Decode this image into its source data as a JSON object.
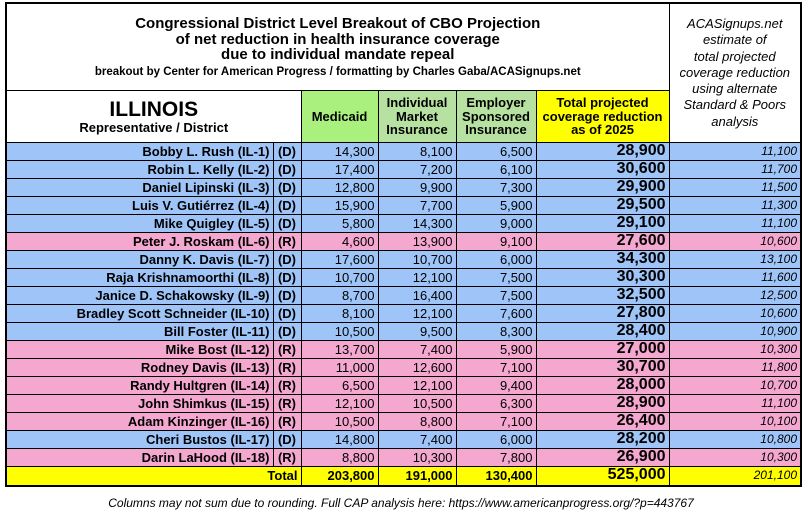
{
  "header": {
    "title_lines": [
      "Congressional District Level Breakout of CBO Projection",
      "of net reduction in health insurance coverage",
      "due to individual mandate repeal"
    ],
    "subtitle": "breakout by Center for American Progress / formatting by Charles Gaba/ACASignups.net",
    "side_note_lines": [
      "ACASignups.net",
      "estimate of",
      "total projected",
      "coverage reduction",
      "using alternate",
      "Standard & Poors",
      "analysis"
    ]
  },
  "table": {
    "state": "ILLINOIS",
    "state_sublabel": "Representative / District",
    "columns": [
      [
        "Medicaid"
      ],
      [
        "Individual",
        "Market",
        "Insurance"
      ],
      [
        "Employer",
        "Sponsored",
        "Insurance"
      ],
      [
        "Total projected",
        "coverage reduction",
        "as of 2025"
      ]
    ],
    "rows": [
      [
        "Bobby L. Rush (IL-1)",
        "(D)",
        "14,300",
        "8,100",
        "6,500",
        "28,900",
        "11,100"
      ],
      [
        "Robin L. Kelly (IL-2)",
        "(D)",
        "17,400",
        "7,200",
        "6,100",
        "30,600",
        "11,700"
      ],
      [
        "Daniel Lipinski (IL-3)",
        "(D)",
        "12,800",
        "9,900",
        "7,300",
        "29,900",
        "11,500"
      ],
      [
        "Luis V. Gutiérrez (IL-4)",
        "(D)",
        "15,900",
        "7,700",
        "5,900",
        "29,500",
        "11,300"
      ],
      [
        "Mike Quigley (IL-5)",
        "(D)",
        "5,800",
        "14,300",
        "9,000",
        "29,100",
        "11,100"
      ],
      [
        "Peter J. Roskam (IL-6)",
        "(R)",
        "4,600",
        "13,900",
        "9,100",
        "27,600",
        "10,600"
      ],
      [
        "Danny K. Davis (IL-7)",
        "(D)",
        "17,600",
        "10,700",
        "6,000",
        "34,300",
        "13,100"
      ],
      [
        "Raja Krishnamoorthi (IL-8)",
        "(D)",
        "10,700",
        "12,100",
        "7,500",
        "30,300",
        "11,600"
      ],
      [
        "Janice D. Schakowsky (IL-9)",
        "(D)",
        "8,700",
        "16,400",
        "7,500",
        "32,500",
        "12,500"
      ],
      [
        "Bradley Scott Schneider (IL-10)",
        "(D)",
        "8,100",
        "12,100",
        "7,600",
        "27,800",
        "10,600"
      ],
      [
        "Bill Foster (IL-11)",
        "(D)",
        "10,500",
        "9,500",
        "8,300",
        "28,400",
        "10,900"
      ],
      [
        "Mike Bost (IL-12)",
        "(R)",
        "13,700",
        "7,400",
        "5,900",
        "27,000",
        "10,300"
      ],
      [
        "Rodney Davis (IL-13)",
        "(R)",
        "11,000",
        "12,600",
        "7,100",
        "30,700",
        "11,800"
      ],
      [
        "Randy Hultgren (IL-14)",
        "(R)",
        "6,500",
        "12,100",
        "9,400",
        "28,000",
        "10,700"
      ],
      [
        "John Shimkus (IL-15)",
        "(R)",
        "12,100",
        "10,500",
        "6,300",
        "28,900",
        "11,100"
      ],
      [
        "Adam Kinzinger (IL-16)",
        "(R)",
        "10,500",
        "8,800",
        "7,100",
        "26,400",
        "10,100"
      ],
      [
        "Cheri Bustos (IL-17)",
        "(D)",
        "14,800",
        "7,400",
        "6,000",
        "28,200",
        "10,800"
      ],
      [
        "Darin LaHood (IL-18)",
        "(R)",
        "8,800",
        "10,300",
        "7,800",
        "26,900",
        "10,300"
      ]
    ],
    "total": [
      "Total",
      "203,800",
      "191,000",
      "130,400",
      "525,000",
      "201,100"
    ]
  },
  "footer": "Columns may not sum due to rounding. Full CAP analysis here: https://www.americanprogress.org/?p=443767"
}
